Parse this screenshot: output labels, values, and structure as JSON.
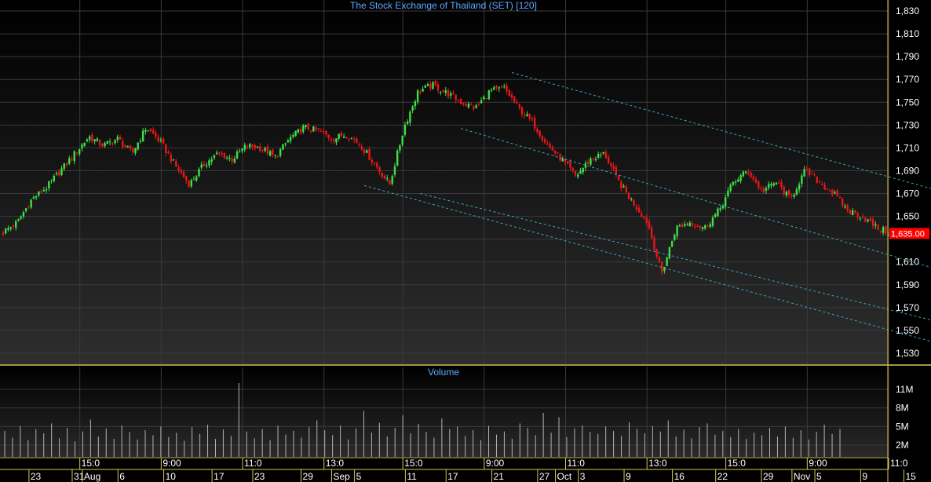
{
  "chart_data": [
    {
      "type": "candlestick",
      "title": "The Stock Exchange of Thailand (SET) [120]",
      "ylim": [
        1520,
        1840
      ],
      "yticks": [
        1530,
        1550,
        1570,
        1590,
        1610,
        1650,
        1670,
        1690,
        1710,
        1730,
        1750,
        1770,
        1790,
        1810,
        1830
      ],
      "ytick_labels": [
        "1,530",
        "1,550",
        "1,570",
        "1,590",
        "1,610",
        "1,650",
        "1,670",
        "1,690",
        "1,710",
        "1,730",
        "1,750",
        "1,770",
        "1,790",
        "1,810",
        "1,830"
      ],
      "last_price": 1635.0,
      "last_price_label": "1,635.00",
      "x_count": 350,
      "series": [
        {
          "values": [
            1636,
            1645,
            1665,
            1675,
            1690,
            1705,
            1720,
            1712,
            1718,
            1705,
            1728,
            1715,
            1695,
            1678,
            1695,
            1705,
            1700,
            1712,
            1710,
            1702,
            1718,
            1728,
            1725,
            1718,
            1722,
            1712,
            1695,
            1678,
            1728,
            1760,
            1765,
            1758,
            1750,
            1745,
            1760,
            1762,
            1745,
            1732,
            1713,
            1700,
            1685,
            1700,
            1705,
            1680,
            1662,
            1645,
            1600,
            1640,
            1645,
            1640,
            1655,
            1680,
            1690,
            1672,
            1680,
            1665,
            1690,
            1680,
            1670,
            1655,
            1650,
            1640,
            1635
          ]
        }
      ]
    },
    {
      "type": "bar",
      "title": "Volume",
      "yticks": [
        2,
        5,
        8,
        11
      ],
      "ytick_labels": [
        "2M",
        "5M",
        "8M",
        "11M"
      ],
      "ylim": [
        0,
        14
      ],
      "series": [
        {
          "values": [
            4.3,
            3.2,
            5.1,
            2.8,
            4.6,
            3.9,
            5.5,
            3.1,
            4.8,
            2.6,
            4.2,
            6.1,
            3.4,
            4.7,
            3.0,
            5.2,
            4.1,
            2.9,
            4.4,
            3.6,
            5.0,
            3.3,
            4.0,
            2.7,
            4.9,
            3.8,
            5.3,
            3.0,
            4.5,
            3.5,
            12.0,
            4.2,
            3.1,
            4.6,
            2.8,
            5.1,
            3.7,
            4.3,
            3.2,
            4.9,
            6.0,
            4.4,
            3.6,
            5.2,
            2.9,
            4.7,
            7.5,
            4.0,
            5.6,
            3.4,
            4.8,
            6.8,
            3.9,
            5.4,
            4.1,
            3.2,
            6.3,
            4.6,
            5.0,
            3.5,
            4.4,
            2.8,
            5.1,
            3.7,
            4.2,
            3.0,
            5.5,
            4.8,
            3.6,
            7.2,
            4.0,
            6.5,
            3.3,
            4.7,
            5.2,
            4.1,
            3.8,
            5.0,
            4.3,
            3.5,
            5.7,
            4.6,
            3.9,
            5.1,
            4.2,
            6.0,
            3.4,
            4.5,
            3.1,
            4.9,
            5.5,
            3.7,
            4.3,
            3.3,
            4.6,
            3.0,
            4.0,
            3.6,
            4.8,
            3.4,
            5.0,
            3.2,
            4.4,
            2.9,
            4.1,
            5.3,
            3.8,
            4.6
          ]
        }
      ]
    }
  ],
  "x_axis": {
    "time_row": [
      {
        "label": "15:0",
        "i": 32
      },
      {
        "label": "9:00",
        "i": 64
      },
      {
        "label": "11:0",
        "i": 96
      },
      {
        "label": "13:0",
        "i": 128
      },
      {
        "label": "15:0",
        "i": 159
      },
      {
        "label": "9:00",
        "i": 191
      },
      {
        "label": "11:0",
        "i": 223
      },
      {
        "label": "13:0",
        "i": 255
      },
      {
        "label": "15:0",
        "i": 286
      },
      {
        "label": "9:00",
        "i": 318
      },
      {
        "label": "11:0",
        "i": 350
      }
    ],
    "date_row": [
      {
        "label": "23",
        "i": 12
      },
      {
        "label": "31",
        "i": 29
      },
      {
        "label": "Aug",
        "i": 33
      },
      {
        "label": "6",
        "i": 47
      },
      {
        "label": "10",
        "i": 65
      },
      {
        "label": "17",
        "i": 84
      },
      {
        "label": "23",
        "i": 100
      },
      {
        "label": "29",
        "i": 119
      },
      {
        "label": "Sep",
        "i": 131
      },
      {
        "label": "5",
        "i": 140
      },
      {
        "label": "11",
        "i": 160
      },
      {
        "label": "17",
        "i": 176
      },
      {
        "label": "21",
        "i": 194
      },
      {
        "label": "27",
        "i": 212
      },
      {
        "label": "Oct",
        "i": 219
      },
      {
        "label": "3",
        "i": 228
      },
      {
        "label": "9",
        "i": 246
      },
      {
        "label": "16",
        "i": 265
      },
      {
        "label": "22",
        "i": 282
      },
      {
        "label": "29",
        "i": 300
      },
      {
        "label": "Nov",
        "i": 312
      },
      {
        "label": "5",
        "i": 321
      },
      {
        "label": "9",
        "i": 339
      },
      {
        "label": "15",
        "i": 356
      }
    ]
  },
  "trendlines": [
    {
      "i1": 200,
      "v1": 1776,
      "i2": 385,
      "v2": 1662
    },
    {
      "i1": 180,
      "v1": 1727,
      "i2": 385,
      "v2": 1592
    },
    {
      "i1": 164,
      "v1": 1670,
      "i2": 385,
      "v2": 1548
    },
    {
      "i1": 142,
      "v1": 1677,
      "i2": 385,
      "v2": 1528
    }
  ],
  "colors": {
    "background": "#000000",
    "panel_top": "#000000",
    "panel_bottom": "#2e2e2e",
    "grid": "#3a3a3a",
    "axis_text": "#ffffff",
    "title": "#5fa8ff",
    "volume_title": "#5fa8ff",
    "up": "#3ee048",
    "down": "#e81616",
    "trendline": "#3aa6c0",
    "separator": "#d8c850",
    "price_box_bg": "#ff0000",
    "price_box_text": "#ffffff",
    "volume_bar": "#b4b4b4"
  }
}
